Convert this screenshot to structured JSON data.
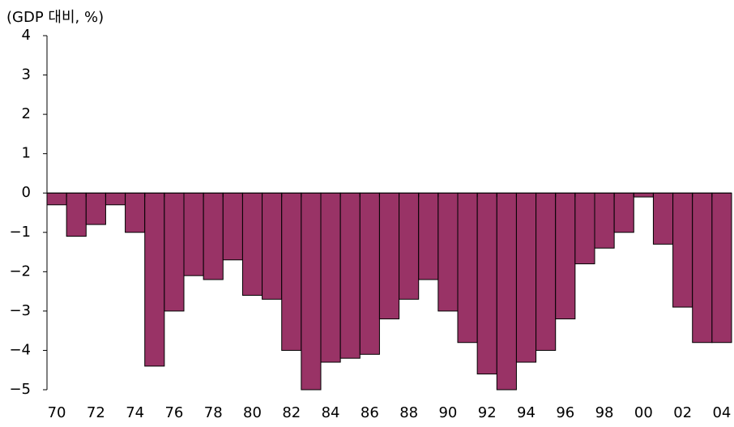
{
  "chart_data": {
    "type": "bar",
    "y_unit_label": "(GDP 대비, %)",
    "categories": [
      "70",
      null,
      "72",
      null,
      "74",
      null,
      "76",
      null,
      "78",
      null,
      "80",
      null,
      "82",
      null,
      "84",
      null,
      "86",
      null,
      "88",
      null,
      "90",
      null,
      "92",
      null,
      "94",
      null,
      "96",
      null,
      "98",
      null,
      "00",
      null,
      "02",
      null,
      "04"
    ],
    "values": [
      -0.3,
      -1.1,
      -0.8,
      -0.3,
      -1.0,
      -4.4,
      -3.0,
      -2.1,
      -2.2,
      -1.7,
      -2.6,
      -2.7,
      -4.0,
      -5.0,
      -4.3,
      -4.2,
      -4.1,
      -3.2,
      -2.7,
      -2.2,
      -3.0,
      -3.8,
      -4.6,
      -5.0,
      -4.3,
      -4.0,
      -3.2,
      -1.8,
      -1.4,
      -1.0,
      -0.1,
      -1.3,
      -2.9,
      -3.8,
      -3.8
    ],
    "color": "#993366",
    "ylim": [
      -5,
      4
    ],
    "yticks": [
      {
        "value": -5,
        "label": "−5"
      },
      {
        "value": -4,
        "label": "−4"
      },
      {
        "value": -3,
        "label": "−3"
      },
      {
        "value": -2,
        "label": "−2"
      },
      {
        "value": -1,
        "label": "−1"
      },
      0,
      1,
      2,
      3,
      4
    ],
    "grid": false
  }
}
